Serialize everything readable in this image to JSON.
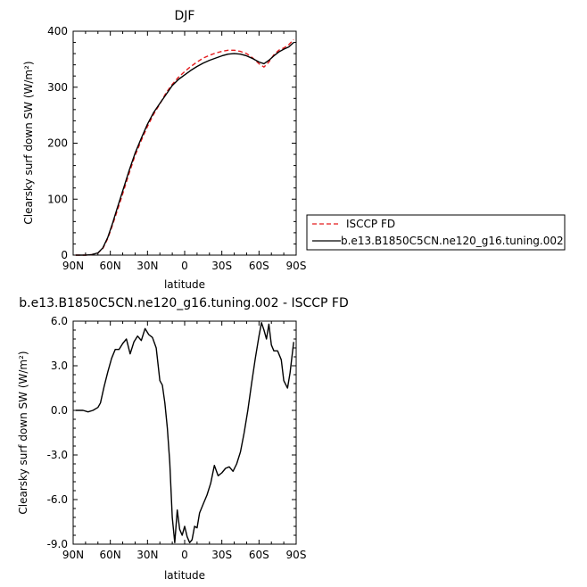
{
  "chart_data": [
    {
      "type": "line",
      "title": "DJF",
      "xlabel": "latitude",
      "ylabel": "Clearsky surf down SW (W/m²)",
      "xlim": [
        90,
        -90
      ],
      "ylim": [
        0,
        400
      ],
      "x_ticks": [
        90,
        60,
        30,
        0,
        -30,
        -60,
        -90
      ],
      "x_tick_labels": [
        "90N",
        "60N",
        "30N",
        "0",
        "30S",
        "60S",
        "90S"
      ],
      "y_ticks": [
        0,
        100,
        200,
        300,
        400
      ],
      "y_tick_labels": [
        "0",
        "100",
        "200",
        "300",
        "400"
      ],
      "legend_position": "right",
      "series": [
        {
          "name": "ISCCP FD",
          "color": "#e41a1c",
          "dash": "dashed",
          "points": [
            [
              88,
              0
            ],
            [
              80,
              0
            ],
            [
              75,
              1
            ],
            [
              70,
              4
            ],
            [
              66,
              12
            ],
            [
              62,
              30
            ],
            [
              58,
              55
            ],
            [
              54,
              82
            ],
            [
              50,
              110
            ],
            [
              45,
              145
            ],
            [
              40,
              178
            ],
            [
              35,
              205
            ],
            [
              30,
              230
            ],
            [
              25,
              252
            ],
            [
              20,
              270
            ],
            [
              15,
              290
            ],
            [
              10,
              305
            ],
            [
              5,
              318
            ],
            [
              0,
              328
            ],
            [
              -5,
              337
            ],
            [
              -10,
              345
            ],
            [
              -15,
              352
            ],
            [
              -20,
              357
            ],
            [
              -25,
              361
            ],
            [
              -30,
              364
            ],
            [
              -35,
              366
            ],
            [
              -40,
              366
            ],
            [
              -45,
              364
            ],
            [
              -50,
              360
            ],
            [
              -55,
              352
            ],
            [
              -60,
              342
            ],
            [
              -64,
              336
            ],
            [
              -68,
              345
            ],
            [
              -72,
              358
            ],
            [
              -76,
              366
            ],
            [
              -80,
              370
            ],
            [
              -84,
              376
            ],
            [
              -88,
              385
            ]
          ]
        },
        {
          "name": "b.e13.B1850C5CN.ne120_g16.tuning.002",
          "color": "#000000",
          "dash": "solid",
          "points": [
            [
              88,
              0
            ],
            [
              80,
              0
            ],
            [
              75,
              1
            ],
            [
              70,
              4
            ],
            [
              66,
              13
            ],
            [
              62,
              32
            ],
            [
              58,
              58
            ],
            [
              54,
              87
            ],
            [
              50,
              115
            ],
            [
              45,
              150
            ],
            [
              40,
              182
            ],
            [
              35,
              209
            ],
            [
              30,
              234
            ],
            [
              25,
              255
            ],
            [
              20,
              271
            ],
            [
              15,
              287
            ],
            [
              10,
              303
            ],
            [
              5,
              314
            ],
            [
              0,
              322
            ],
            [
              -5,
              330
            ],
            [
              -10,
              337
            ],
            [
              -15,
              343
            ],
            [
              -20,
              348
            ],
            [
              -25,
              352
            ],
            [
              -30,
              356
            ],
            [
              -35,
              359
            ],
            [
              -40,
              360
            ],
            [
              -45,
              359
            ],
            [
              -50,
              356
            ],
            [
              -55,
              351
            ],
            [
              -60,
              345
            ],
            [
              -64,
              342
            ],
            [
              -68,
              348
            ],
            [
              -72,
              356
            ],
            [
              -76,
              363
            ],
            [
              -80,
              368
            ],
            [
              -84,
              372
            ],
            [
              -88,
              380
            ]
          ]
        }
      ]
    },
    {
      "type": "line",
      "title": "b.e13.B1850C5CN.ne120_g16.tuning.002 - ISCCP FD",
      "xlabel": "latitude",
      "ylabel": "Clearsky surf down SW (W/m²)",
      "xlim": [
        90,
        -90
      ],
      "ylim": [
        -9,
        6
      ],
      "x_ticks": [
        90,
        60,
        30,
        0,
        -30,
        -60,
        -90
      ],
      "x_tick_labels": [
        "90N",
        "60N",
        "30N",
        "0",
        "30S",
        "60S",
        "90S"
      ],
      "y_ticks": [
        6,
        3,
        0,
        -3,
        -6,
        -9
      ],
      "y_tick_labels": [
        "6.0",
        "3.0",
        "0.0",
        "-3.0",
        "-6.0",
        "-9.0"
      ],
      "series": [
        {
          "name": "",
          "color": "#000000",
          "dash": "solid",
          "points": [
            [
              88,
              0
            ],
            [
              82,
              0
            ],
            [
              78,
              -0.1
            ],
            [
              74,
              0
            ],
            [
              70,
              0.2
            ],
            [
              68,
              0.5
            ],
            [
              65,
              1.6
            ],
            [
              62,
              2.6
            ],
            [
              59,
              3.5
            ],
            [
              56,
              4.1
            ],
            [
              53,
              4.1
            ],
            [
              50,
              4.5
            ],
            [
              47,
              4.8
            ],
            [
              44,
              3.8
            ],
            [
              41,
              4.6
            ],
            [
              38,
              5
            ],
            [
              35,
              4.7
            ],
            [
              32,
              5.5
            ],
            [
              29,
              5.1
            ],
            [
              26,
              4.9
            ],
            [
              23,
              4.2
            ],
            [
              20,
              2
            ],
            [
              18,
              1.7
            ],
            [
              16,
              0.5
            ],
            [
              14,
              -1.2
            ],
            [
              12,
              -3.5
            ],
            [
              10,
              -7.2
            ],
            [
              8,
              -8.9
            ],
            [
              6,
              -6.7
            ],
            [
              4,
              -8
            ],
            [
              2,
              -8.4
            ],
            [
              0,
              -7.8
            ],
            [
              -2,
              -8.5
            ],
            [
              -4,
              -8.9
            ],
            [
              -6,
              -8.7
            ],
            [
              -8,
              -7.8
            ],
            [
              -10,
              -7.9
            ],
            [
              -12,
              -6.9
            ],
            [
              -15,
              -6.3
            ],
            [
              -18,
              -5.7
            ],
            [
              -21,
              -4.9
            ],
            [
              -24,
              -3.7
            ],
            [
              -27,
              -4.4
            ],
            [
              -30,
              -4.2
            ],
            [
              -33,
              -3.9
            ],
            [
              -36,
              -3.8
            ],
            [
              -39,
              -4.1
            ],
            [
              -42,
              -3.6
            ],
            [
              -45,
              -2.8
            ],
            [
              -48,
              -1.5
            ],
            [
              -51,
              0
            ],
            [
              -54,
              1.8
            ],
            [
              -57,
              3.5
            ],
            [
              -60,
              5
            ],
            [
              -62,
              5.9
            ],
            [
              -64,
              5.4
            ],
            [
              -66,
              4.8
            ],
            [
              -68,
              5.8
            ],
            [
              -70,
              4.4
            ],
            [
              -72,
              4
            ],
            [
              -75,
              4
            ],
            [
              -78,
              3.4
            ],
            [
              -80,
              2
            ],
            [
              -83,
              1.5
            ],
            [
              -85,
              2.5
            ],
            [
              -88,
              4.6
            ]
          ]
        }
      ]
    }
  ]
}
